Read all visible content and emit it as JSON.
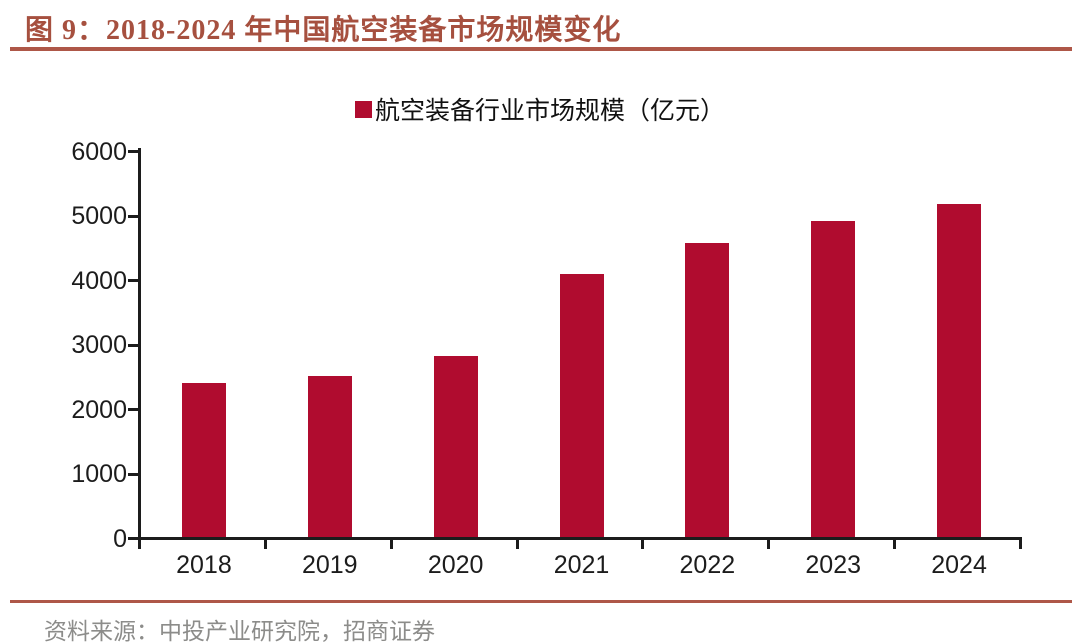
{
  "figure": {
    "title": "图 9：2018-2024 年中国航空装备市场规模变化",
    "source": "资料来源：中投产业研究院，招商证券"
  },
  "legend": {
    "label": "航空装备行业市场规模（亿元）"
  },
  "colors": {
    "bar": "#B00C2F",
    "title_text": "#A6503F",
    "rule": "#AE5748",
    "axis": "#1C1C1C",
    "source_text": "#8C8C8A"
  },
  "chart_data": {
    "type": "bar",
    "title": "2018-2024 年中国航空装备市场规模变化",
    "series_name": "航空装备行业市场规模（亿元）",
    "categories": [
      "2018",
      "2019",
      "2020",
      "2021",
      "2022",
      "2023",
      "2024"
    ],
    "values": [
      2380,
      2490,
      2810,
      4080,
      4560,
      4900,
      5170
    ],
    "xlabel": "",
    "ylabel": "",
    "unit": "亿元",
    "ylim": [
      0,
      6000
    ],
    "yticks": [
      0,
      1000,
      2000,
      3000,
      4000,
      5000,
      6000
    ],
    "grid": false,
    "legend_position": "top-center"
  }
}
